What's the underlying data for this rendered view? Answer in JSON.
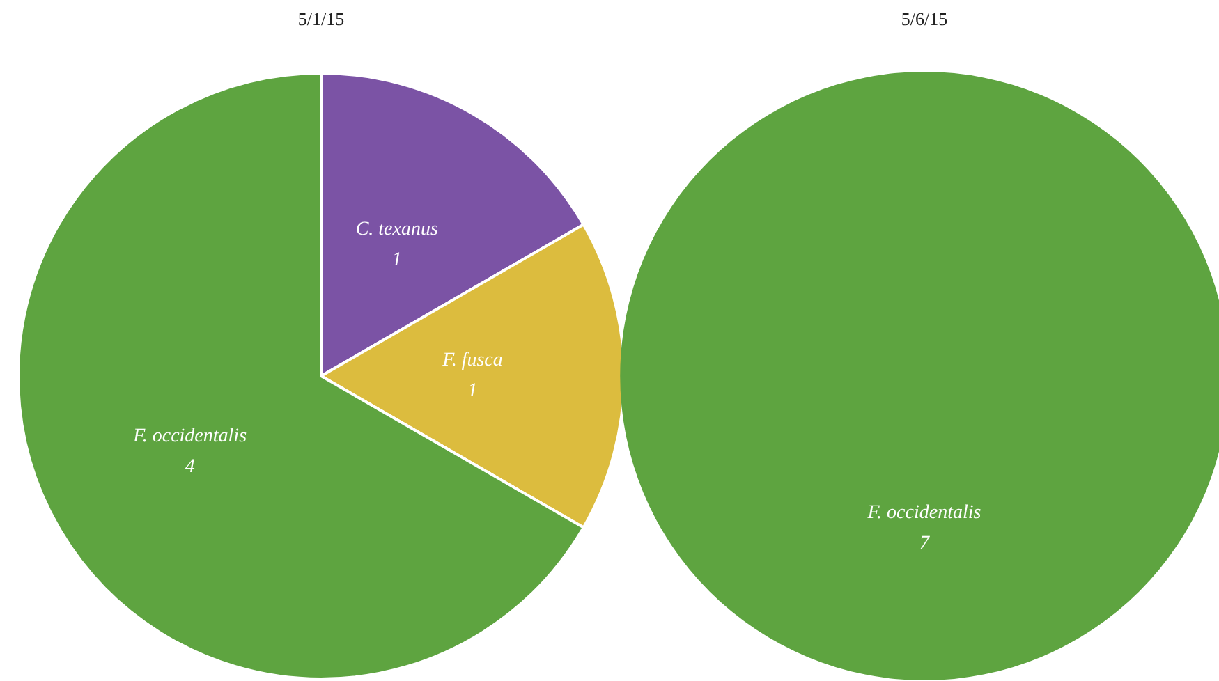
{
  "chart_data": [
    {
      "type": "pie",
      "title": "5/1/15",
      "categories": [
        "C. texanus",
        "F. fusca",
        "F. occidentalis"
      ],
      "values": [
        1,
        1,
        4
      ],
      "colors": [
        "#7b53a5",
        "#dcbc3e",
        "#5ea440"
      ],
      "data_labels": true
    },
    {
      "type": "pie",
      "title": "5/6/15",
      "categories": [
        "F. occidentalis"
      ],
      "values": [
        7
      ],
      "colors": [
        "#5ea440"
      ],
      "data_labels": true
    }
  ]
}
